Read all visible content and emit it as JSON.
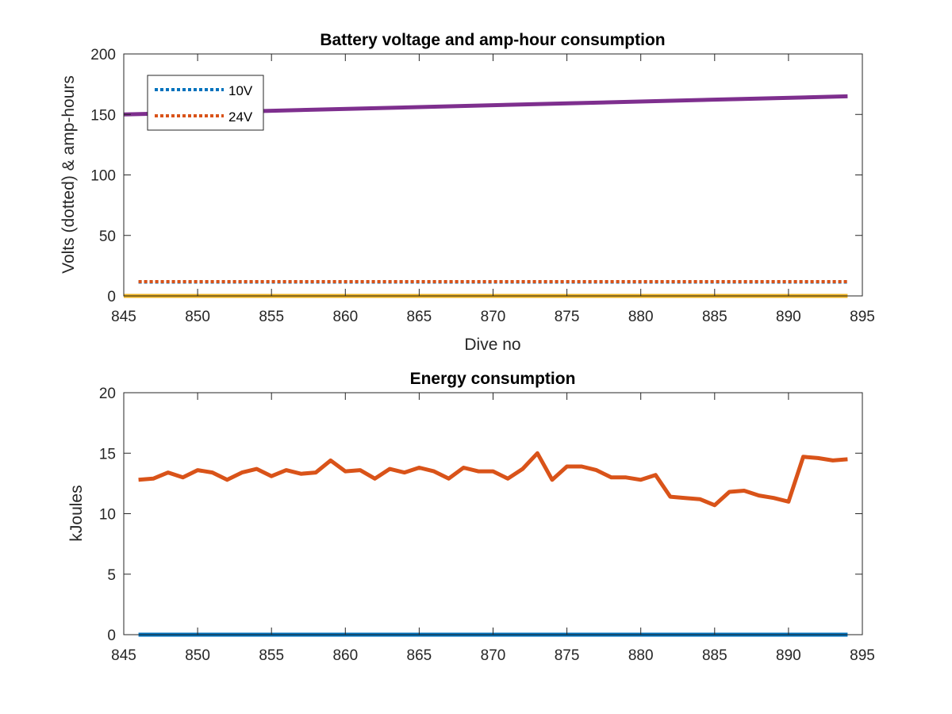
{
  "colors": {
    "blue": "#0072BD",
    "orange": "#D95319",
    "yellow": "#EDB120",
    "purple": "#7E2F8E",
    "axis": "#262626"
  },
  "chart_data": [
    {
      "type": "line",
      "title": "Battery voltage and amp-hour consumption",
      "xlabel": "Dive no",
      "ylabel": "Volts (dotted) & amp-hours",
      "xlim": [
        845,
        895
      ],
      "ylim": [
        0,
        200
      ],
      "xticks": [
        845,
        850,
        855,
        860,
        865,
        870,
        875,
        880,
        885,
        890,
        895
      ],
      "yticks": [
        0,
        50,
        100,
        150,
        200
      ],
      "grid": false,
      "legend": {
        "position": "top-left",
        "entries": [
          "10V",
          "24V"
        ]
      },
      "series": [
        {
          "name": "10V",
          "style": "dotted",
          "color": "#0072BD",
          "x": [
            846,
            894
          ],
          "y": [
            11.5,
            11.5
          ]
        },
        {
          "name": "24V",
          "style": "dotted",
          "color": "#D95319",
          "x": [
            846,
            894
          ],
          "y": [
            11.8,
            11.8
          ]
        },
        {
          "style": "solid",
          "color": "#7E2F8E",
          "x": [
            845,
            894
          ],
          "y": [
            150,
            165
          ]
        },
        {
          "style": "solid",
          "color": "#EDB120",
          "x": [
            845,
            894
          ],
          "y": [
            0,
            0
          ]
        }
      ]
    },
    {
      "type": "line",
      "title": "Energy consumption",
      "xlabel": "",
      "ylabel": "kJoules",
      "xlim": [
        845,
        895
      ],
      "ylim": [
        0,
        20
      ],
      "xticks": [
        845,
        850,
        855,
        860,
        865,
        870,
        875,
        880,
        885,
        890,
        895
      ],
      "yticks": [
        0,
        5,
        10,
        15,
        20
      ],
      "grid": false,
      "series": [
        {
          "style": "solid",
          "color": "#D95319",
          "x": [
            846,
            847,
            848,
            849,
            850,
            851,
            852,
            853,
            854,
            855,
            856,
            857,
            858,
            859,
            860,
            861,
            862,
            863,
            864,
            865,
            866,
            867,
            868,
            869,
            870,
            871,
            872,
            873,
            874,
            875,
            876,
            877,
            878,
            879,
            880,
            881,
            882,
            883,
            884,
            885,
            886,
            887,
            888,
            889,
            890,
            891,
            892,
            893,
            894
          ],
          "y": [
            12.8,
            12.9,
            13.4,
            13.0,
            13.6,
            13.4,
            12.8,
            13.4,
            13.7,
            13.1,
            13.6,
            13.3,
            13.4,
            14.4,
            13.5,
            13.6,
            12.9,
            13.7,
            13.4,
            13.8,
            13.5,
            12.9,
            13.8,
            13.5,
            13.5,
            12.9,
            13.7,
            15.0,
            12.8,
            13.9,
            13.9,
            13.6,
            13.0,
            13.0,
            12.8,
            13.2,
            11.4,
            11.3,
            11.2,
            10.7,
            11.8,
            11.9,
            11.5,
            11.3,
            11.0,
            14.7,
            14.6,
            14.4,
            14.5
          ]
        },
        {
          "style": "solid",
          "color": "#0072BD",
          "x": [
            846,
            894
          ],
          "y": [
            0,
            0
          ]
        }
      ]
    }
  ]
}
